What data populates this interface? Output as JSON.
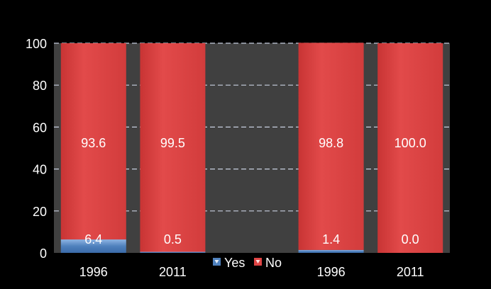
{
  "chart_data": {
    "type": "bar",
    "stacked": true,
    "categories": [
      "1996",
      "2011",
      "",
      "1996",
      "2011"
    ],
    "series": [
      {
        "name": "Yes",
        "values": [
          6.4,
          0.5,
          null,
          1.4,
          0.0
        ],
        "labels": [
          "6.4",
          "0.5",
          "",
          "1.4",
          "0.0"
        ],
        "color": "#4f81bd"
      },
      {
        "name": "No",
        "values": [
          93.6,
          99.5,
          null,
          98.8,
          100.0
        ],
        "labels": [
          "93.6",
          "99.5",
          "",
          "98.8",
          "100.0"
        ],
        "color": "#e04545"
      }
    ],
    "ylim": [
      0,
      100
    ],
    "yticks": [
      "0",
      "20",
      "40",
      "60",
      "80",
      "100"
    ],
    "grid": true,
    "legend_position": "bottom-center",
    "colors": {
      "background": "#000000",
      "plot_area": "#404040",
      "gridline": "#c8d0e0",
      "text": "#ffffff"
    }
  }
}
